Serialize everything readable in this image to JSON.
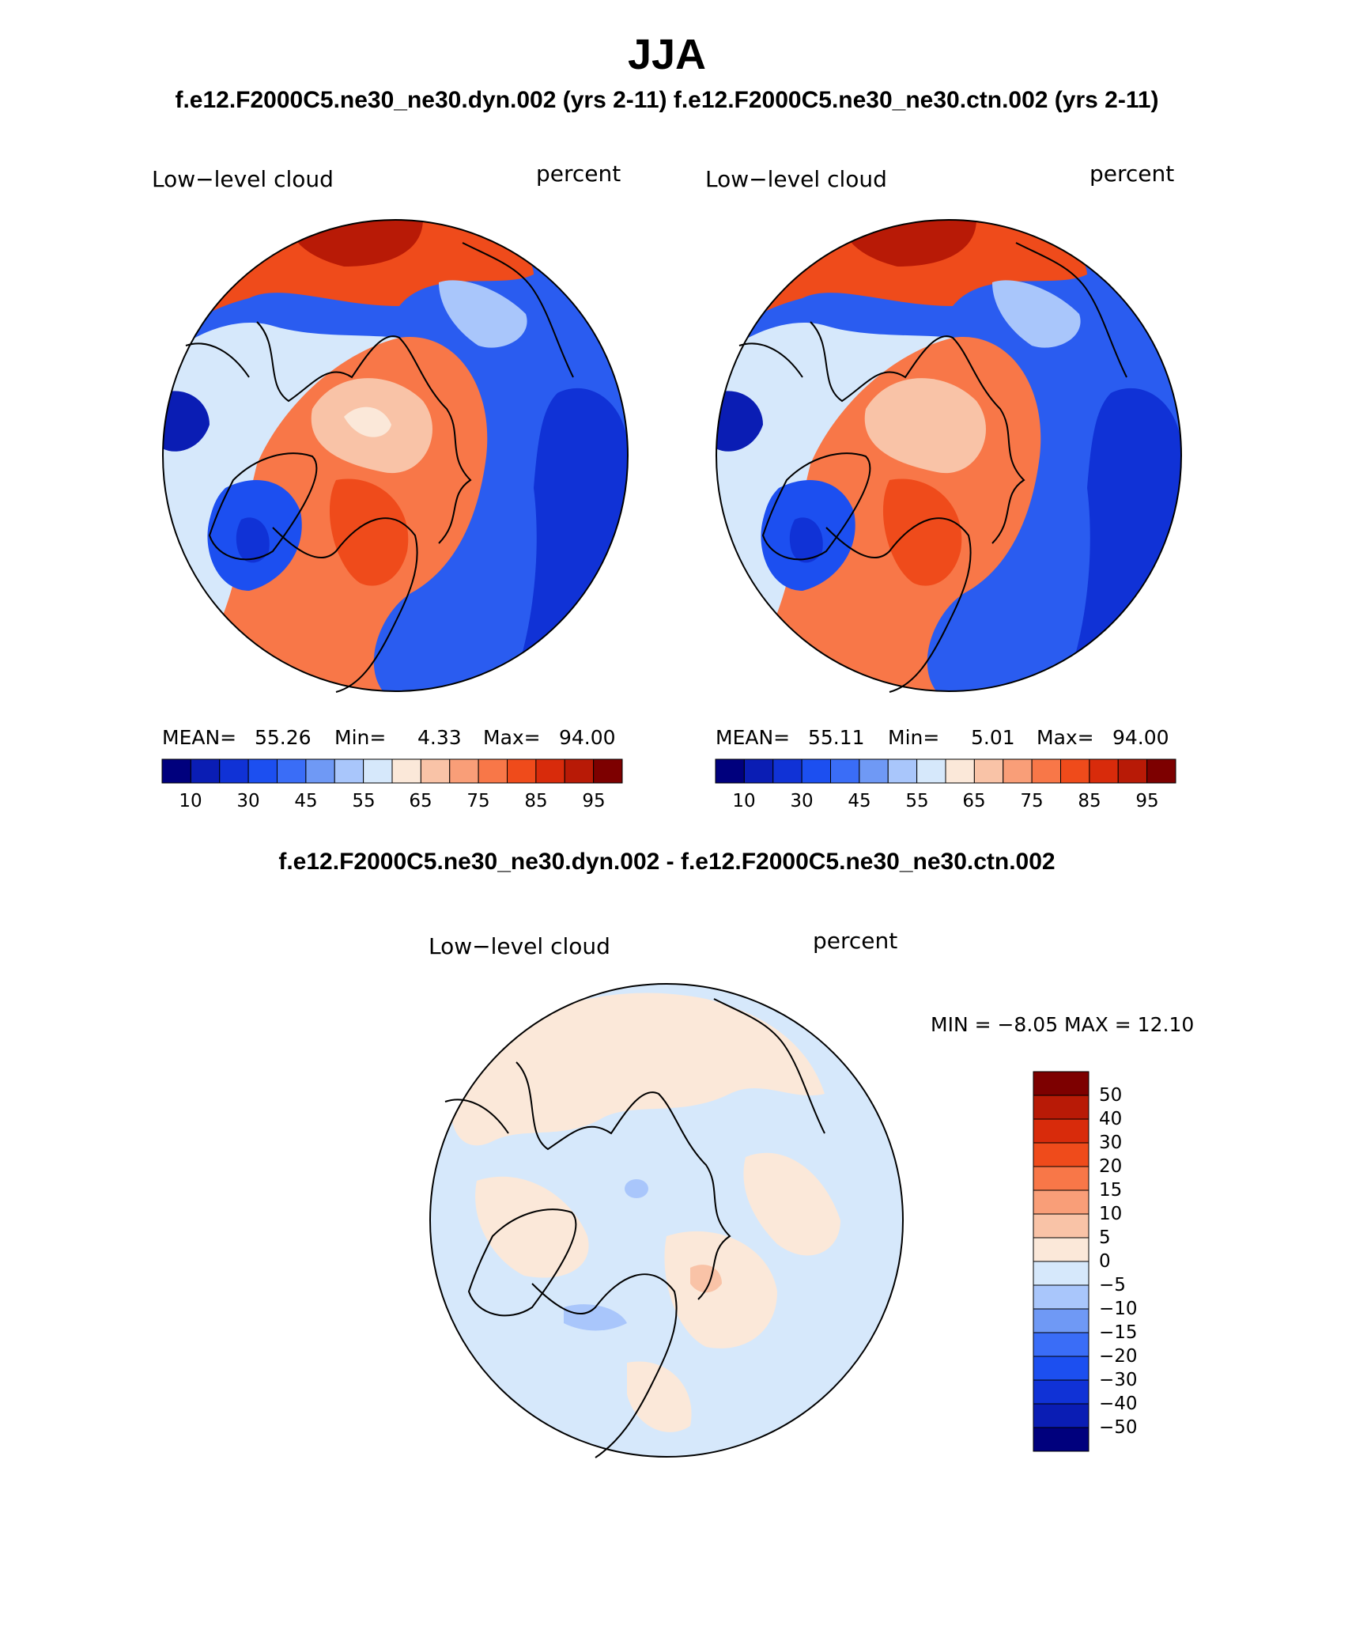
{
  "figure": {
    "title": "JJA",
    "subtitle": "f.e12.F2000C5.ne30_ne30.dyn.002 (yrs 2-11)  f.e12.F2000C5.ne30_ne30.ctn.002 (yrs 2-11)",
    "diff_title": "f.e12.F2000C5.ne30_ne30.dyn.002 - f.e12.F2000C5.ne30_ne30.ctn.002"
  },
  "panels": [
    {
      "id": "dyn",
      "variable": "Low−level cloud",
      "units": "percent",
      "stats": {
        "mean_label": "MEAN=",
        "mean": "55.26",
        "min_label": "Min=",
        "min": "4.33",
        "max_label": "Max=",
        "max": "94.00"
      }
    },
    {
      "id": "ctn",
      "variable": "Low−level cloud",
      "units": "percent",
      "stats": {
        "mean_label": "MEAN=",
        "mean": "55.11",
        "min_label": "Min=",
        "min": "5.01",
        "max_label": "Max=",
        "max": "94.00"
      }
    }
  ],
  "diff_panel": {
    "variable": "Low−level cloud",
    "units": "percent",
    "stats_text": "MIN =   −8.05 MAX =   12.10"
  },
  "colorbar_main": {
    "colors": [
      "#00007d",
      "#0a1db4",
      "#1032d6",
      "#1c4ff0",
      "#3a6df7",
      "#6f99f5",
      "#a9c6fb",
      "#d6e8fb",
      "#fbe8d9",
      "#f9c3a7",
      "#f99e78",
      "#f87748",
      "#ef4b1b",
      "#d82b0b",
      "#b81a06",
      "#7d0000"
    ],
    "ticks": [
      "10",
      "30",
      "45",
      "55",
      "65",
      "75",
      "85",
      "95"
    ]
  },
  "colorbar_diff": {
    "colors": [
      "#7d0000",
      "#b81a06",
      "#d82b0b",
      "#ef4b1b",
      "#f87748",
      "#f99e78",
      "#f9c3a7",
      "#fbe8d9",
      "#d6e8fb",
      "#a9c6fb",
      "#6f99f5",
      "#3a6df7",
      "#1c4ff0",
      "#1032d6",
      "#0a1db4",
      "#00007d"
    ],
    "ticks": [
      "50",
      "40",
      "30",
      "20",
      "15",
      "10",
      "5",
      "0",
      "−5",
      "−10",
      "−15",
      "−20",
      "−30",
      "−40",
      "−50"
    ]
  }
}
